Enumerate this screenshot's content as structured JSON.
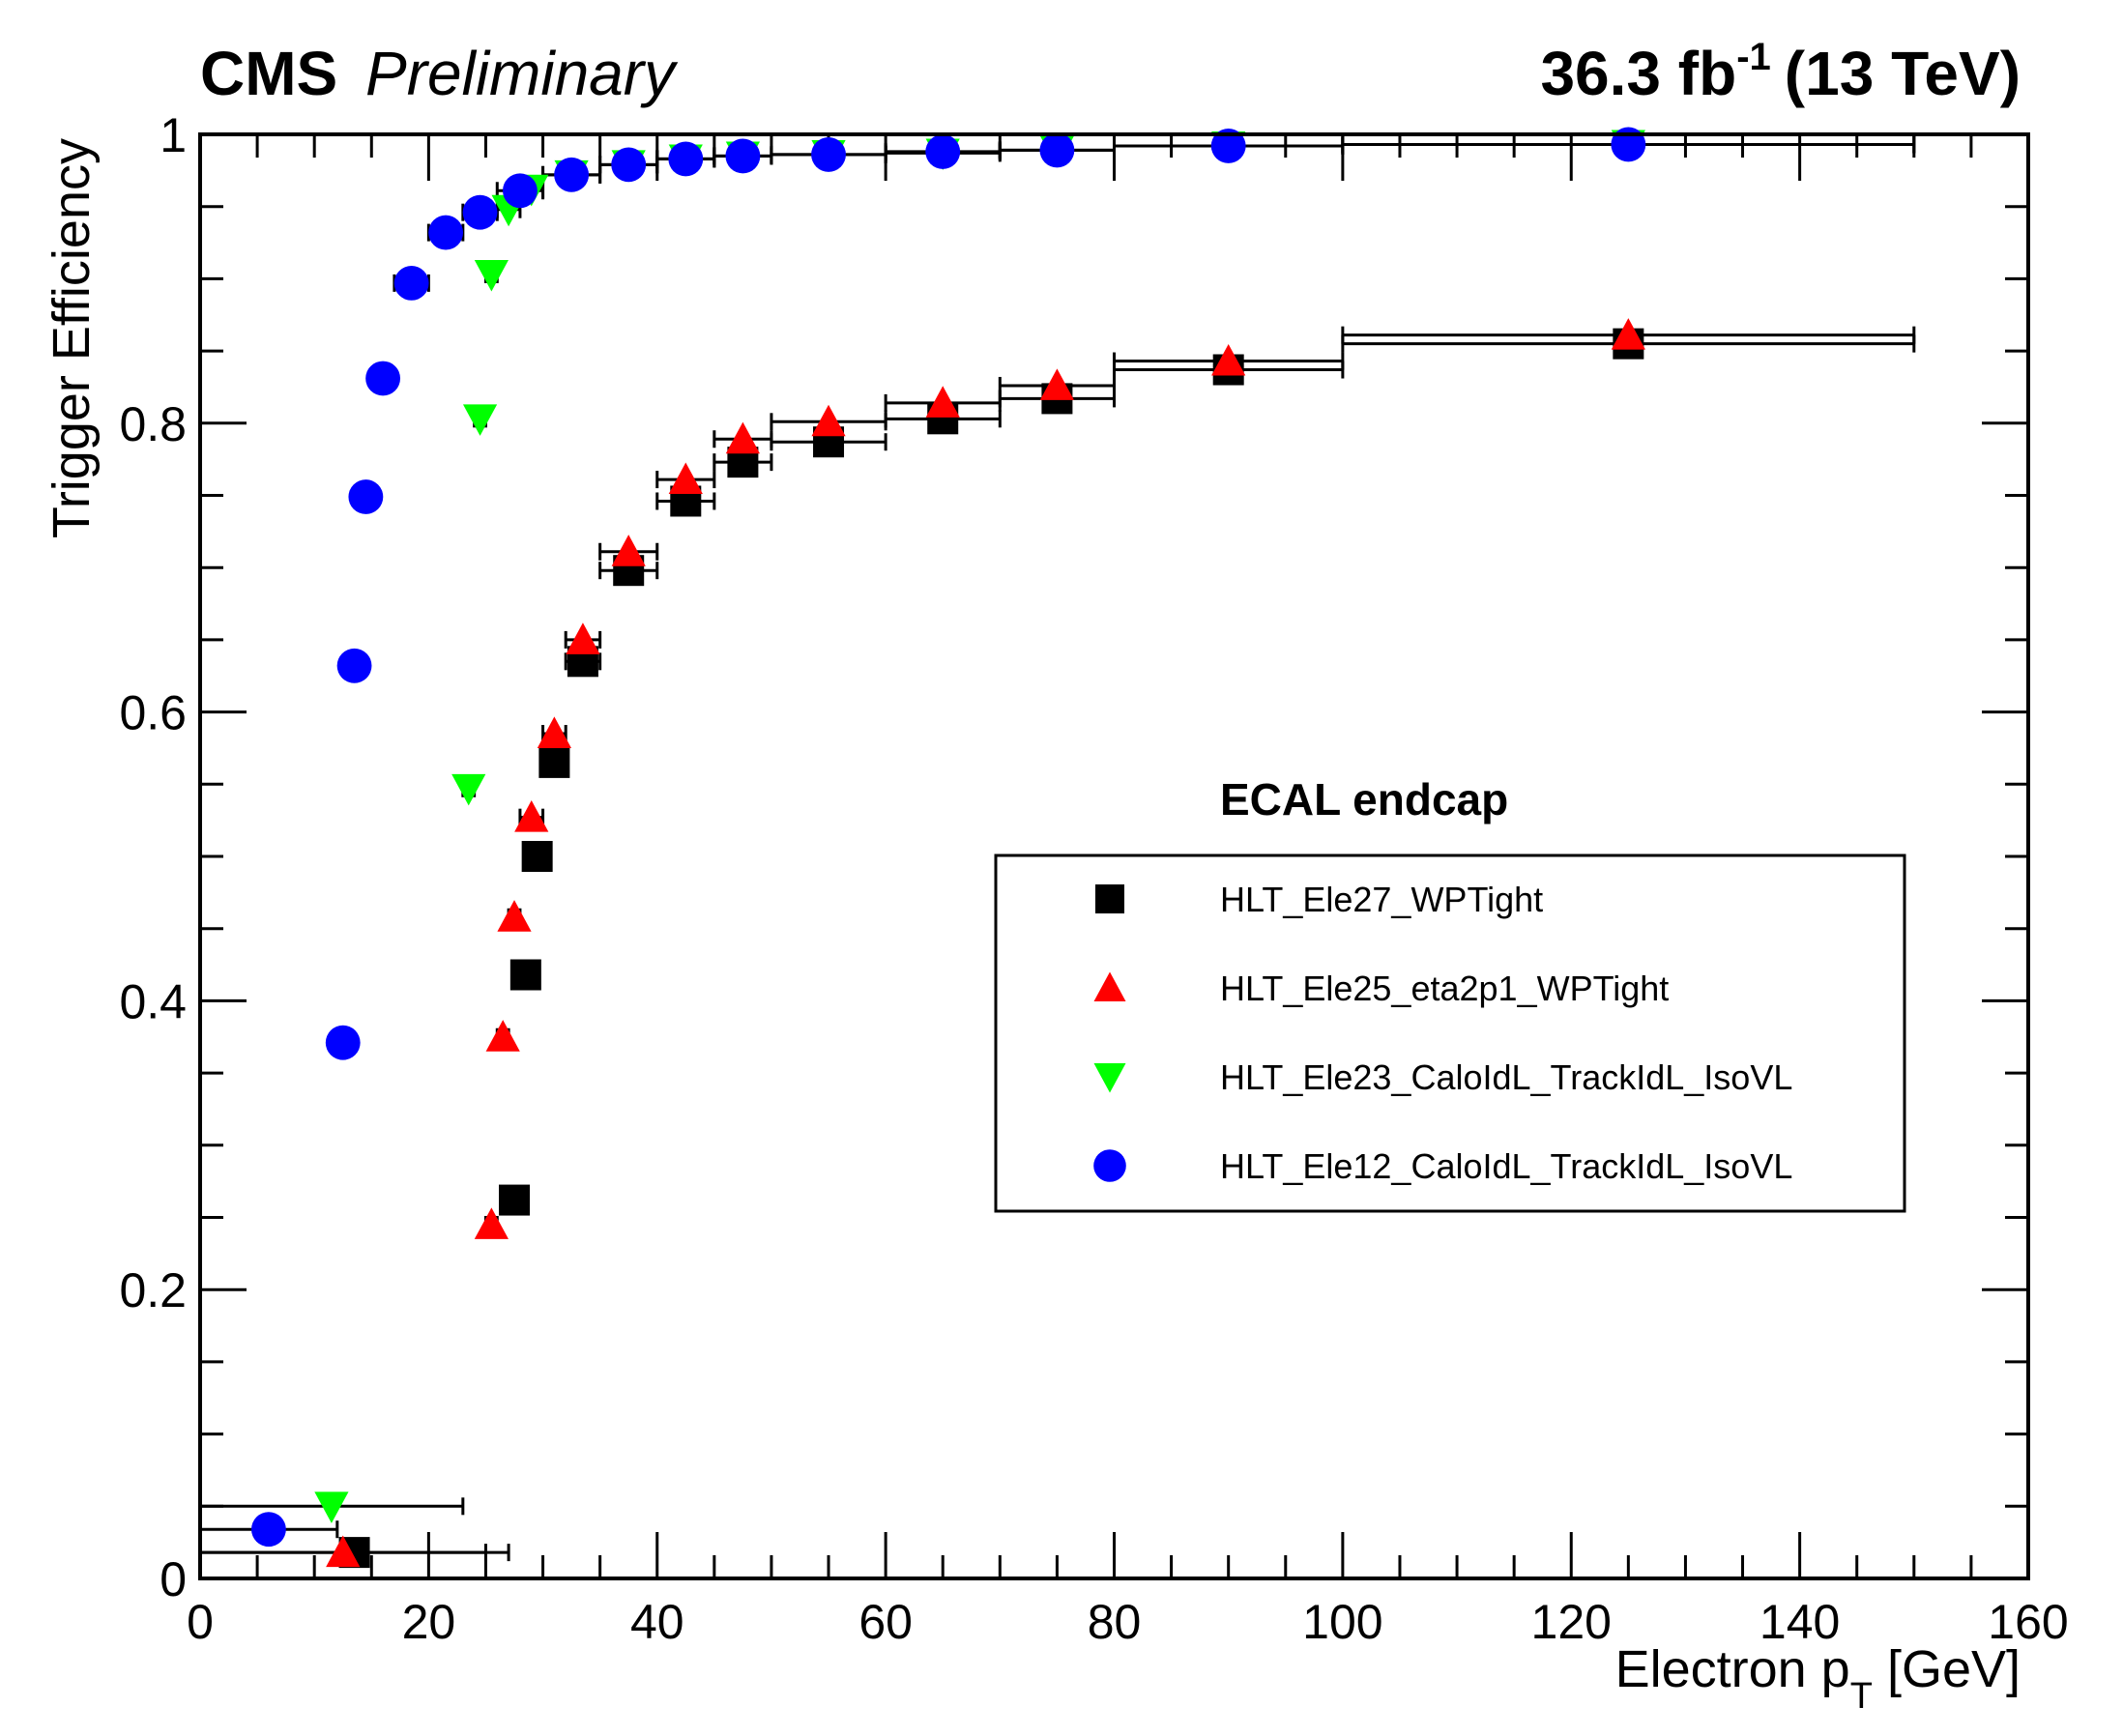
{
  "header": {
    "experiment": "CMS",
    "status": "Preliminary",
    "lumi_value": "36.3 fb",
    "lumi_exp": "-1",
    "energy": "(13 TeV)"
  },
  "chart_data": {
    "type": "scatter",
    "title": "",
    "xlabel_main": "Electron p",
    "xlabel_sub": "T",
    "xlabel_unit": " [GeV]",
    "ylabel": "Trigger Efficiency",
    "xlim": [
      0,
      160
    ],
    "ylim": [
      0,
      1.0
    ],
    "xticks": [
      0,
      20,
      40,
      60,
      80,
      100,
      120,
      140,
      160
    ],
    "xtick_labels": [
      "0",
      "20",
      "40",
      "60",
      "80",
      "100",
      "120",
      "140",
      "160"
    ],
    "yticks": [
      0,
      0.2,
      0.4,
      0.6,
      0.8,
      1.0
    ],
    "ytick_labels": [
      "0",
      "0.2",
      "0.4",
      "0.6",
      "0.8",
      "1"
    ],
    "grid": false,
    "legend_position": "center-right",
    "legend_header": "ECAL endcap",
    "series": [
      {
        "name": "HLT_Ele27_WPTight",
        "marker": "square",
        "color": "#000000",
        "points": [
          {
            "x": 13.5,
            "y": 0.018,
            "xlo": 0,
            "xhi": 27
          },
          {
            "x": 27.5,
            "y": 0.262,
            "xlo": 27,
            "xhi": 28
          },
          {
            "x": 28.5,
            "y": 0.418,
            "xlo": 28,
            "xhi": 29
          },
          {
            "x": 29.5,
            "y": 0.5,
            "xlo": 29,
            "xhi": 30
          },
          {
            "x": 31.0,
            "y": 0.565,
            "xlo": 30,
            "xhi": 32
          },
          {
            "x": 33.5,
            "y": 0.635,
            "xlo": 32,
            "xhi": 35
          },
          {
            "x": 37.5,
            "y": 0.698,
            "xlo": 35,
            "xhi": 40
          },
          {
            "x": 42.5,
            "y": 0.746,
            "xlo": 40,
            "xhi": 45
          },
          {
            "x": 47.5,
            "y": 0.773,
            "xlo": 45,
            "xhi": 50
          },
          {
            "x": 55.0,
            "y": 0.787,
            "xlo": 50,
            "xhi": 60
          },
          {
            "x": 65.0,
            "y": 0.803,
            "xlo": 60,
            "xhi": 70
          },
          {
            "x": 75.0,
            "y": 0.817,
            "xlo": 70,
            "xhi": 80
          },
          {
            "x": 90.0,
            "y": 0.837,
            "xlo": 80,
            "xhi": 100
          },
          {
            "x": 125.0,
            "y": 0.855,
            "xlo": 100,
            "xhi": 150
          }
        ]
      },
      {
        "name": "HLT_Ele25_eta2p1_WPTight",
        "marker": "triangle-up",
        "color": "#ff0000",
        "points": [
          {
            "x": 12.5,
            "y": 0.018,
            "xlo": 0,
            "xhi": 25
          },
          {
            "x": 25.5,
            "y": 0.245,
            "xlo": 25,
            "xhi": 26
          },
          {
            "x": 26.5,
            "y": 0.375,
            "xlo": 26,
            "xhi": 27
          },
          {
            "x": 27.5,
            "y": 0.458,
            "xlo": 27,
            "xhi": 28
          },
          {
            "x": 29.0,
            "y": 0.527,
            "xlo": 28,
            "xhi": 30
          },
          {
            "x": 31.0,
            "y": 0.585,
            "xlo": 30,
            "xhi": 32
          },
          {
            "x": 33.5,
            "y": 0.65,
            "xlo": 32,
            "xhi": 35
          },
          {
            "x": 37.5,
            "y": 0.711,
            "xlo": 35,
            "xhi": 40
          },
          {
            "x": 42.5,
            "y": 0.761,
            "xlo": 40,
            "xhi": 45
          },
          {
            "x": 47.5,
            "y": 0.789,
            "xlo": 45,
            "xhi": 50
          },
          {
            "x": 55.0,
            "y": 0.801,
            "xlo": 50,
            "xhi": 60
          },
          {
            "x": 65.0,
            "y": 0.814,
            "xlo": 60,
            "xhi": 70
          },
          {
            "x": 75.0,
            "y": 0.826,
            "xlo": 70,
            "xhi": 80
          },
          {
            "x": 90.0,
            "y": 0.843,
            "xlo": 80,
            "xhi": 100
          },
          {
            "x": 125.0,
            "y": 0.861,
            "xlo": 100,
            "xhi": 150
          }
        ]
      },
      {
        "name": "HLT_Ele23_CaloIdL_TrackIdL_IsoVL",
        "marker": "triangle-down",
        "color": "#00ff00",
        "points": [
          {
            "x": 11.5,
            "y": 0.05,
            "xlo": 0,
            "xhi": 23
          },
          {
            "x": 23.5,
            "y": 0.547,
            "xlo": 23,
            "xhi": 24
          },
          {
            "x": 24.5,
            "y": 0.803,
            "xlo": 24,
            "xhi": 25
          },
          {
            "x": 25.5,
            "y": 0.903,
            "xlo": 25,
            "xhi": 26
          },
          {
            "x": 27.0,
            "y": 0.948,
            "xlo": 26,
            "xhi": 28
          },
          {
            "x": 29.0,
            "y": 0.962,
            "xlo": 28,
            "xhi": 30
          },
          {
            "x": 32.5,
            "y": 0.972,
            "xlo": 30,
            "xhi": 35
          },
          {
            "x": 37.5,
            "y": 0.979,
            "xlo": 35,
            "xhi": 40
          },
          {
            "x": 42.5,
            "y": 0.983,
            "xlo": 40,
            "xhi": 45
          },
          {
            "x": 47.5,
            "y": 0.985,
            "xlo": 45,
            "xhi": 50
          },
          {
            "x": 55.0,
            "y": 0.986,
            "xlo": 50,
            "xhi": 60
          },
          {
            "x": 65.0,
            "y": 0.987,
            "xlo": 60,
            "xhi": 70
          },
          {
            "x": 75.0,
            "y": 0.989,
            "xlo": 70,
            "xhi": 80
          },
          {
            "x": 90.0,
            "y": 0.992,
            "xlo": 80,
            "xhi": 100
          },
          {
            "x": 125.0,
            "y": 0.993,
            "xlo": 100,
            "xhi": 150
          }
        ]
      },
      {
        "name": "HLT_Ele12_CaloIdL_TrackIdL_IsoVL",
        "marker": "circle",
        "color": "#0000ff",
        "points": [
          {
            "x": 6.0,
            "y": 0.034,
            "xlo": 0,
            "xhi": 12
          },
          {
            "x": 12.5,
            "y": 0.371,
            "xlo": 12,
            "xhi": 13
          },
          {
            "x": 13.5,
            "y": 0.632,
            "xlo": 13,
            "xhi": 14
          },
          {
            "x": 14.5,
            "y": 0.749,
            "xlo": 14,
            "xhi": 15
          },
          {
            "x": 16.0,
            "y": 0.831,
            "xlo": 15,
            "xhi": 17
          },
          {
            "x": 18.5,
            "y": 0.897,
            "xlo": 17,
            "xhi": 20
          },
          {
            "x": 21.5,
            "y": 0.932,
            "xlo": 20,
            "xhi": 23
          },
          {
            "x": 24.5,
            "y": 0.946,
            "xlo": 23,
            "xhi": 26
          },
          {
            "x": 28.0,
            "y": 0.961,
            "xlo": 26,
            "xhi": 30
          },
          {
            "x": 32.5,
            "y": 0.972,
            "xlo": 30,
            "xhi": 35
          },
          {
            "x": 37.5,
            "y": 0.979,
            "xlo": 35,
            "xhi": 40
          },
          {
            "x": 42.5,
            "y": 0.983,
            "xlo": 40,
            "xhi": 45
          },
          {
            "x": 47.5,
            "y": 0.985,
            "xlo": 45,
            "xhi": 50
          },
          {
            "x": 55.0,
            "y": 0.986,
            "xlo": 50,
            "xhi": 60
          },
          {
            "x": 65.0,
            "y": 0.988,
            "xlo": 60,
            "xhi": 70
          },
          {
            "x": 75.0,
            "y": 0.989,
            "xlo": 70,
            "xhi": 80
          },
          {
            "x": 90.0,
            "y": 0.992,
            "xlo": 80,
            "xhi": 100
          },
          {
            "x": 125.0,
            "y": 0.993,
            "xlo": 100,
            "xhi": 150
          }
        ]
      }
    ]
  }
}
